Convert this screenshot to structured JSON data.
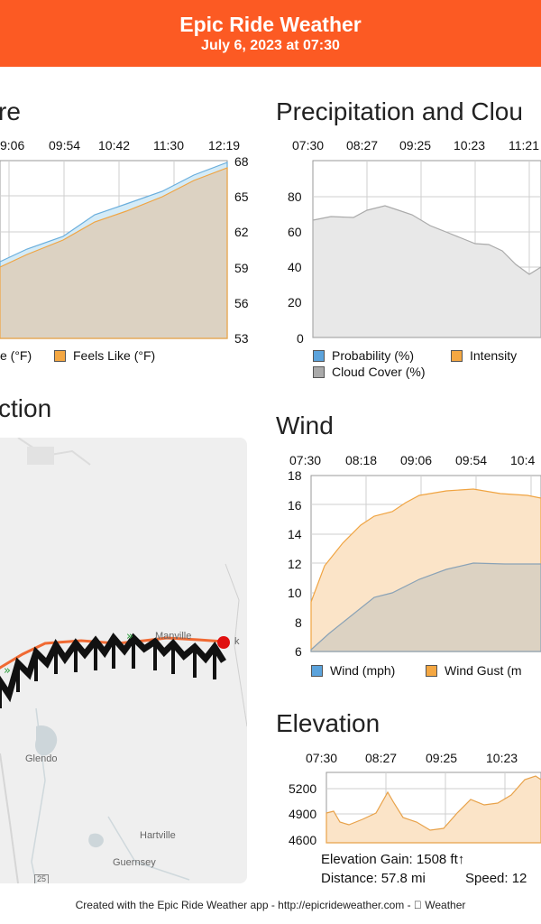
{
  "header": {
    "title": "Epic Ride Weather",
    "subtitle": "July 6, 2023 at 07:30"
  },
  "temperature": {
    "title_fragment": "re",
    "x_ticks": [
      "9:06",
      "09:54",
      "10:42",
      "11:30",
      "12:19"
    ],
    "y_ticks": [
      "68",
      "65",
      "62",
      "59",
      "56",
      "53"
    ],
    "legend": [
      {
        "label": "e (°F)",
        "color": "#5b9bd5"
      },
      {
        "label": "Feels Like (°F)",
        "color": "#f4a742"
      }
    ]
  },
  "precip": {
    "title": "Precipitation and Clou",
    "x_ticks": [
      "07:30",
      "08:27",
      "09:25",
      "10:23",
      "11:21"
    ],
    "y_ticks": [
      "80",
      "60",
      "40",
      "20",
      "0"
    ],
    "legend": [
      {
        "label": "Probability (%)",
        "color": "#5ba3dc"
      },
      {
        "label": "Intensity",
        "color": "#f4a742"
      },
      {
        "label": "Cloud Cover (%)",
        "color": "#aaaaaa"
      }
    ]
  },
  "direction": {
    "title_fragment": "ction"
  },
  "map": {
    "labels": [
      "Manville",
      "Glendo",
      "Hartville",
      "Guernsey",
      "25",
      "k"
    ]
  },
  "wind": {
    "title": "Wind",
    "x_ticks": [
      "07:30",
      "08:18",
      "09:06",
      "09:54",
      "10:4"
    ],
    "y_ticks": [
      "18",
      "16",
      "14",
      "12",
      "10",
      "8",
      "6"
    ],
    "legend": [
      {
        "label": "Wind (mph)",
        "color": "#5ba3dc"
      },
      {
        "label": "Wind Gust (m",
        "color": "#f4a742"
      }
    ]
  },
  "elevation": {
    "title": "Elevation",
    "x_ticks": [
      "07:30",
      "08:27",
      "09:25",
      "10:23"
    ],
    "y_ticks": [
      "5200",
      "4900",
      "4600"
    ],
    "gain": "Elevation Gain: 1508 ft↑",
    "distance": "Distance: 57.8 mi",
    "speed": "Speed: 12"
  },
  "footer": "Created with the Epic Ride Weather app - http://epicrideweather.com -  Weather",
  "chart_data": [
    {
      "type": "area",
      "title": "",
      "x": [
        "9:06",
        "09:54",
        "10:42",
        "11:30",
        "12:19"
      ],
      "ylim": [
        53,
        68
      ],
      "series": [
        {
          "name": "Feels Like (°F)",
          "values": [
            58.4,
            61.0,
            63.4,
            65.7,
            67.5
          ]
        }
      ]
    },
    {
      "type": "area",
      "title": "Precipitation and Clou",
      "x": [
        "07:30",
        "08:27",
        "09:25",
        "10:23",
        "11:21"
      ],
      "ylim": [
        0,
        90
      ],
      "series": [
        {
          "name": "Cloud Cover (%)",
          "values": [
            67,
            75,
            66,
            55,
            41
          ]
        },
        {
          "name": "Probability (%)",
          "values": [
            0,
            0,
            0,
            0,
            0
          ]
        }
      ]
    },
    {
      "type": "area",
      "title": "Wind",
      "x": [
        "07:30",
        "08:18",
        "09:06",
        "09:54",
        "10:4"
      ],
      "ylim": [
        6,
        18
      ],
      "series": [
        {
          "name": "Wind (mph)",
          "values": [
            6.2,
            9.5,
            11.0,
            12.0,
            11.9
          ]
        },
        {
          "name": "Wind Gust (m",
          "values": [
            9.3,
            14.5,
            16.4,
            17.0,
            16.7
          ]
        }
      ]
    },
    {
      "type": "area",
      "title": "Elevation",
      "x": [
        "07:30",
        "08:27",
        "09:25",
        "10:23"
      ],
      "ylim": [
        4600,
        5300
      ],
      "series": [
        {
          "name": "",
          "values": [
            4920,
            5150,
            4730,
            5000
          ]
        }
      ]
    }
  ]
}
